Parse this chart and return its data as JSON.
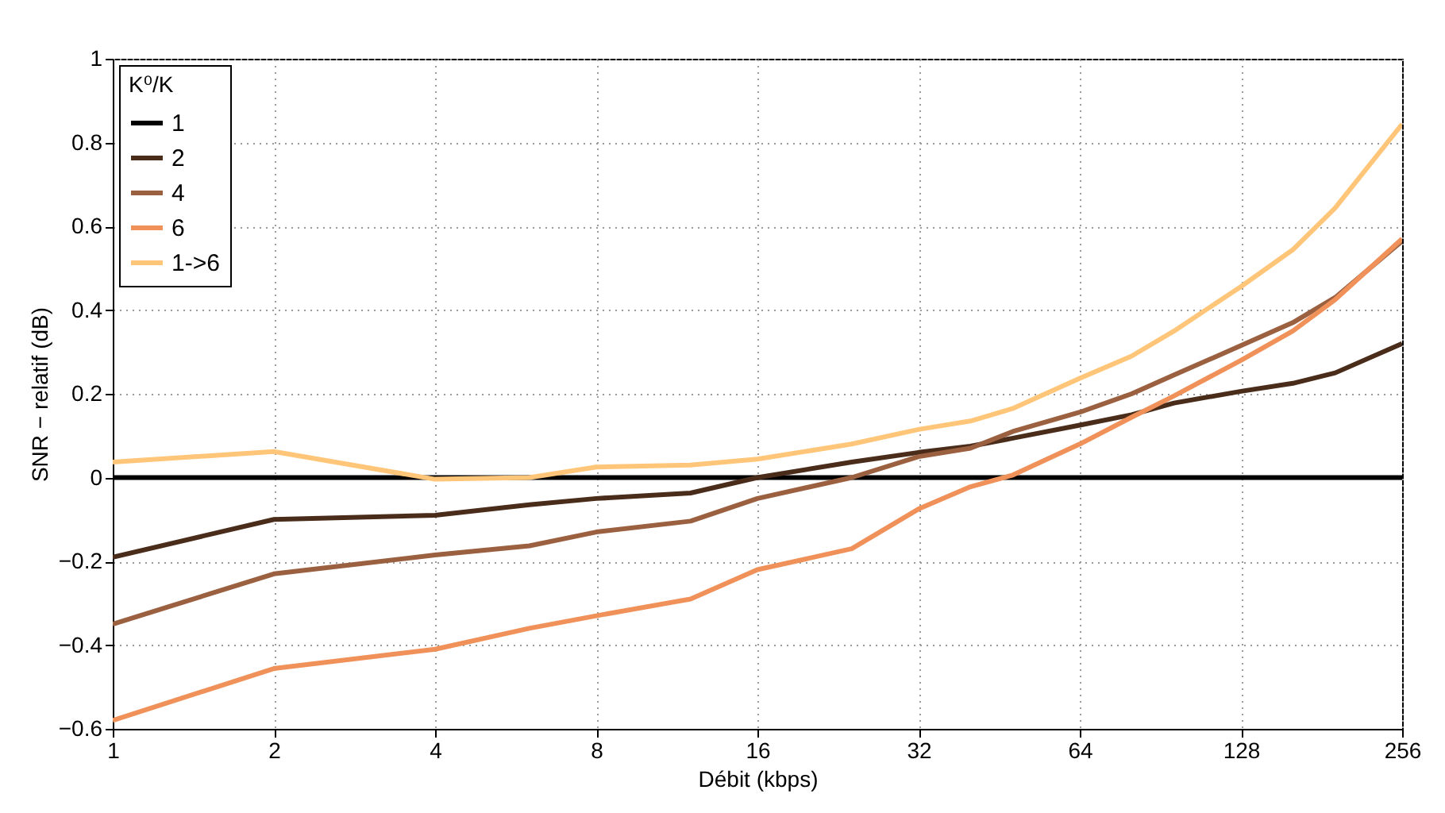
{
  "chart_data": {
    "type": "line",
    "xlabel": "Débit (kbps)",
    "ylabel": "SNR − relatif (dB)",
    "legend_title": "K⁰/K",
    "log": "x",
    "grid": true,
    "legend": "top left",
    "x": [
      1,
      2,
      4,
      6,
      8,
      12,
      16,
      24,
      32,
      40,
      48,
      64,
      80,
      96,
      128,
      160,
      192,
      256
    ],
    "xlim": [
      1,
      256
    ],
    "xticks": [
      1,
      2,
      4,
      8,
      16,
      32,
      64,
      128,
      256
    ],
    "ylim": [
      -0.6,
      1
    ],
    "yticks": [
      -0.6,
      -0.4,
      -0.2,
      0,
      0.2,
      0.4,
      0.6,
      0.8,
      1
    ],
    "series": [
      {
        "name": "1",
        "color": "#000000",
        "values": [
          0,
          0,
          0,
          0,
          0,
          0,
          0,
          0,
          0,
          0,
          0,
          0,
          0,
          0,
          0,
          0,
          0,
          0
        ]
      },
      {
        "name": "2",
        "color": "#4a2c1a",
        "values": [
          -0.19,
          -0.1,
          -0.09,
          -0.065,
          -0.05,
          -0.037,
          0,
          0.037,
          0.06,
          0.075,
          0.094,
          0.125,
          0.15,
          0.178,
          0.206,
          0.225,
          0.25,
          0.32
        ]
      },
      {
        "name": "4",
        "color": "#9a6040",
        "values": [
          -0.35,
          -0.23,
          -0.185,
          -0.163,
          -0.13,
          -0.104,
          -0.05,
          0,
          0.05,
          0.07,
          0.11,
          0.156,
          0.2,
          0.245,
          0.315,
          0.37,
          0.43,
          0.565
        ]
      },
      {
        "name": "6",
        "color": "#f0915a",
        "values": [
          -0.58,
          -0.456,
          -0.41,
          -0.36,
          -0.33,
          -0.29,
          -0.22,
          -0.17,
          -0.075,
          -0.022,
          0.006,
          0.08,
          0.144,
          0.195,
          0.28,
          0.35,
          0.425,
          0.57
        ]
      },
      {
        "name": "1->6",
        "color": "#ffc67a",
        "values": [
          0.037,
          0.062,
          -0.004,
          0,
          0.025,
          0.03,
          0.044,
          0.08,
          0.115,
          0.135,
          0.165,
          0.237,
          0.29,
          0.35,
          0.456,
          0.544,
          0.644,
          0.844
        ]
      }
    ]
  }
}
